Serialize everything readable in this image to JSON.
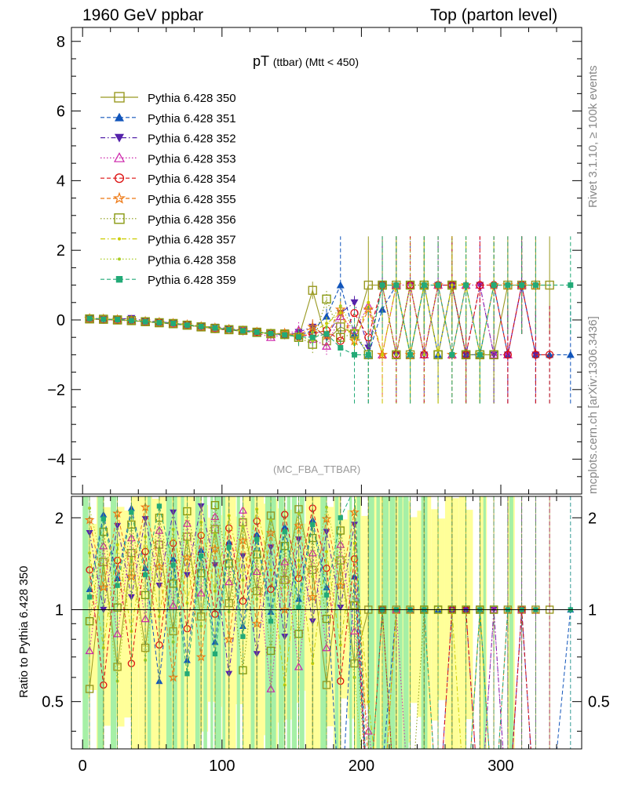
{
  "header": {
    "left": "1960 GeV ppbar",
    "right": "Top (parton level)"
  },
  "side_labels": {
    "rivet": "Rivet 3.1.10, ≥ 100k events",
    "mcplots": "mcplots.cern.ch [arXiv:1306.3436]"
  },
  "plot_title": {
    "main": "pT",
    "sub": "(ttbar) (Mtt < 450)"
  },
  "analysis_tag": "(MC_FBA_TTBAR)",
  "chart_data": [
    {
      "type": "line",
      "panel": "main",
      "xlim": [
        -8,
        358
      ],
      "ylim": [
        -5,
        8.4
      ],
      "y_ticks": [
        -4,
        -2,
        0,
        2,
        4,
        6,
        8
      ],
      "y_tick_labels": [
        "−4",
        "−2",
        "0",
        "2",
        "4",
        "6",
        "8"
      ],
      "x_ticks": [
        0,
        100,
        200,
        300
      ],
      "legend_position": "top-left",
      "series": [
        {
          "name": "Pythia 6.428 350",
          "color": "#999922",
          "marker": "open-square",
          "dash": "solid",
          "x": [
            5,
            15,
            25,
            35,
            45,
            55,
            65,
            75,
            85,
            95,
            105,
            115,
            125,
            135,
            145,
            155,
            165,
            175,
            185,
            195,
            205,
            215,
            225,
            235,
            245,
            255,
            265,
            275,
            285,
            295,
            305,
            315,
            325,
            335
          ],
          "y": [
            0.03,
            0.02,
            0.0,
            -0.02,
            -0.05,
            -0.08,
            -0.1,
            -0.15,
            -0.2,
            -0.25,
            -0.28,
            -0.3,
            -0.35,
            -0.4,
            -0.4,
            -0.5,
            0.85,
            -0.6,
            -0.2,
            -0.4,
            1.0,
            1.0,
            1.0,
            -1.0,
            1.0,
            -1.0,
            1.0,
            -1.0,
            -1.0,
            -1.0,
            1.0,
            1.0,
            1.0,
            1.0
          ]
        },
        {
          "name": "Pythia 6.428 351",
          "color": "#1155bb",
          "marker": "filled-triangle-up",
          "dash": "dashed",
          "x": [
            5,
            15,
            25,
            35,
            45,
            55,
            65,
            75,
            85,
            95,
            105,
            115,
            125,
            135,
            145,
            155,
            165,
            175,
            185,
            195,
            205,
            215,
            225,
            235,
            245,
            255,
            265,
            275,
            285,
            295,
            305,
            315,
            325,
            335,
            350
          ],
          "y": [
            0.05,
            0.03,
            0.01,
            -0.01,
            -0.04,
            -0.06,
            -0.09,
            -0.14,
            -0.18,
            -0.22,
            -0.27,
            -0.33,
            -0.36,
            -0.38,
            -0.42,
            -0.45,
            -0.3,
            0.1,
            1.0,
            -0.4,
            -1.0,
            0.3,
            1.0,
            -1.0,
            1.0,
            -1.0,
            1.0,
            -1.0,
            -1.0,
            1.0,
            -1.0,
            1.0,
            -1.0,
            -1.0,
            -1.0
          ]
        },
        {
          "name": "Pythia 6.428 352",
          "color": "#5522aa",
          "marker": "filled-triangle-down",
          "dash": "dashdot",
          "x": [
            5,
            15,
            25,
            35,
            45,
            55,
            65,
            75,
            85,
            95,
            105,
            115,
            125,
            135,
            145,
            155,
            165,
            175,
            185,
            195,
            205,
            215,
            225,
            235,
            245,
            255,
            265,
            275,
            285,
            295,
            305,
            315,
            325
          ],
          "y": [
            0.04,
            0.02,
            0.02,
            0.05,
            -0.03,
            -0.05,
            -0.1,
            -0.13,
            -0.19,
            -0.2,
            -0.25,
            -0.3,
            -0.33,
            -0.4,
            -0.45,
            -0.35,
            -0.2,
            -0.5,
            0.2,
            0.5,
            -0.8,
            1.0,
            -1.0,
            1.0,
            -1.0,
            1.0,
            1.0,
            -1.0,
            1.0,
            -1.0,
            -1.0,
            1.0,
            -1.0
          ]
        },
        {
          "name": "Pythia 6.428 353",
          "color": "#cc22aa",
          "marker": "open-triangle-up",
          "dash": "dotted",
          "x": [
            5,
            15,
            25,
            35,
            45,
            55,
            65,
            75,
            85,
            95,
            105,
            115,
            125,
            135,
            145,
            155,
            165,
            175,
            185,
            195,
            205,
            215,
            225,
            235,
            245,
            255,
            265,
            275,
            285,
            295,
            305,
            315
          ],
          "y": [
            0.02,
            0.01,
            -0.01,
            -0.03,
            -0.05,
            -0.09,
            -0.11,
            -0.16,
            -0.21,
            -0.24,
            -0.26,
            -0.31,
            -0.37,
            -0.5,
            -0.41,
            -0.3,
            -0.55,
            -0.75,
            0.1,
            -0.3,
            0.4,
            -1.0,
            1.0,
            1.0,
            -1.0,
            1.0,
            -1.0,
            1.0,
            1.0,
            -1.0,
            -1.0,
            1.0
          ]
        },
        {
          "name": "Pythia 6.428 354",
          "color": "#dd1111",
          "marker": "open-circle",
          "dash": "dashed",
          "x": [
            5,
            15,
            25,
            35,
            45,
            55,
            65,
            75,
            85,
            95,
            105,
            115,
            125,
            135,
            145,
            155,
            165,
            175,
            185,
            195,
            205,
            215,
            225,
            235,
            245,
            255,
            265,
            275,
            285,
            295,
            305,
            315,
            325,
            335
          ],
          "y": [
            0.03,
            0.01,
            0.0,
            -0.02,
            -0.06,
            -0.08,
            -0.12,
            -0.15,
            -0.2,
            -0.26,
            -0.29,
            -0.32,
            -0.34,
            -0.39,
            -0.43,
            -0.48,
            -0.4,
            -0.3,
            -0.6,
            0.2,
            -0.5,
            1.0,
            -1.0,
            1.0,
            -1.0,
            1.0,
            1.0,
            -1.0,
            1.0,
            1.0,
            -1.0,
            1.0,
            -1.0,
            -1.0
          ]
        },
        {
          "name": "Pythia 6.428 355",
          "color": "#ee7711",
          "marker": "open-star",
          "dash": "dashed",
          "x": [
            5,
            15,
            25,
            35,
            45,
            55,
            65,
            75,
            85,
            95,
            105,
            115,
            125,
            135,
            145,
            155,
            165,
            175,
            185,
            195,
            205,
            215,
            225,
            235,
            245,
            255,
            265,
            275,
            285,
            295,
            305,
            315,
            325
          ],
          "y": [
            0.04,
            0.03,
            0.01,
            -0.01,
            -0.04,
            -0.07,
            -0.1,
            -0.14,
            -0.19,
            -0.23,
            -0.27,
            -0.31,
            -0.35,
            -0.4,
            -0.38,
            -0.44,
            -0.2,
            -0.45,
            0.3,
            -0.6,
            0.3,
            -1.0,
            1.0,
            -1.0,
            1.0,
            1.0,
            -1.0,
            1.0,
            -1.0,
            1.0,
            1.0,
            1.0,
            1.0
          ]
        },
        {
          "name": "Pythia 6.428 356",
          "color": "#889911",
          "marker": "open-square",
          "dash": "dotted",
          "x": [
            5,
            15,
            25,
            35,
            45,
            55,
            65,
            75,
            85,
            95,
            105,
            115,
            125,
            135,
            145,
            155,
            165,
            175,
            185,
            195,
            205,
            215,
            225,
            235,
            245,
            255,
            265,
            275,
            285,
            295
          ],
          "y": [
            0.03,
            0.02,
            0.0,
            -0.02,
            -0.05,
            -0.08,
            -0.11,
            -0.15,
            -0.2,
            -0.24,
            -0.28,
            -0.3,
            -0.36,
            -0.39,
            -0.42,
            -0.5,
            -0.7,
            0.6,
            -0.5,
            -0.4,
            -1.0,
            1.0,
            -1.0,
            1.0,
            1.0,
            -1.0,
            1.0,
            -1.0,
            -1.0,
            -1.0
          ]
        },
        {
          "name": "Pythia 6.428 357",
          "color": "#cccc00",
          "marker": "small-dot",
          "dash": "dashdot",
          "x": [
            5,
            15,
            25,
            35,
            45,
            55,
            65,
            75,
            85,
            95,
            105,
            115,
            125,
            135,
            145,
            155,
            165,
            175,
            185,
            195,
            205,
            215,
            225,
            235,
            245,
            255,
            265,
            275,
            285,
            295
          ],
          "y": [
            0.05,
            0.03,
            0.01,
            -0.01,
            -0.04,
            -0.07,
            -0.1,
            -0.13,
            -0.18,
            -0.22,
            -0.27,
            -0.32,
            -0.34,
            -0.38,
            -0.44,
            -0.46,
            -0.35,
            -0.1,
            0.2,
            -0.7,
            0.5,
            -1.0,
            1.0,
            -1.0,
            1.0,
            -1.0,
            1.0,
            1.0,
            -1.0,
            1.0
          ]
        },
        {
          "name": "Pythia 6.428 358",
          "color": "#aacc22",
          "marker": "small-dot",
          "dash": "dotted",
          "x": [
            5,
            15,
            25,
            35,
            45,
            55,
            65,
            75,
            85,
            95,
            105,
            115,
            125,
            135,
            145,
            155,
            165,
            175,
            185,
            195,
            205,
            215,
            225,
            235,
            245,
            255,
            265,
            275,
            285
          ],
          "y": [
            0.02,
            0.02,
            0.0,
            -0.03,
            -0.05,
            -0.09,
            -0.11,
            -0.16,
            -0.2,
            -0.25,
            -0.29,
            -0.33,
            -0.37,
            -0.41,
            -0.4,
            -0.47,
            -0.6,
            -0.2,
            0.4,
            -0.3,
            -1.0,
            1.0,
            -1.0,
            1.0,
            -1.0,
            1.0,
            -1.0,
            1.0,
            -1.0
          ]
        },
        {
          "name": "Pythia 6.428 359",
          "color": "#22aa77",
          "marker": "filled-square",
          "dash": "dashed",
          "x": [
            5,
            15,
            25,
            35,
            45,
            55,
            65,
            75,
            85,
            95,
            105,
            115,
            125,
            135,
            145,
            155,
            165,
            175,
            185,
            195,
            205,
            215,
            225,
            235,
            245,
            255,
            265,
            275,
            285,
            295,
            305,
            315,
            325,
            350
          ],
          "y": [
            0.04,
            0.02,
            0.01,
            -0.02,
            -0.05,
            -0.08,
            -0.1,
            -0.15,
            -0.19,
            -0.23,
            -0.28,
            -0.31,
            -0.35,
            -0.39,
            -0.43,
            -0.49,
            -0.5,
            -0.4,
            -0.8,
            -1.0,
            -1.0,
            1.0,
            1.0,
            -1.0,
            1.0,
            1.0,
            -1.0,
            1.0,
            -1.0,
            1.0,
            1.0,
            1.0,
            1.0,
            1.0
          ]
        }
      ]
    },
    {
      "type": "line",
      "panel": "ratio",
      "ylabel": "Ratio to Pythia 6.428 350",
      "xlim": [
        -8,
        358
      ],
      "ylim_log": [
        0.35,
        2.35
      ],
      "y_ticks": [
        0.5,
        1,
        2
      ],
      "y_tick_labels": [
        "0.5",
        "1",
        "2"
      ],
      "x_ticks": [
        0,
        100,
        200,
        300
      ],
      "x_tick_labels": [
        "0",
        "100",
        "200",
        "300"
      ],
      "reference_line": 1,
      "band_colors": {
        "inner": "#a6f0a6",
        "outer": "#ffff99"
      }
    }
  ]
}
